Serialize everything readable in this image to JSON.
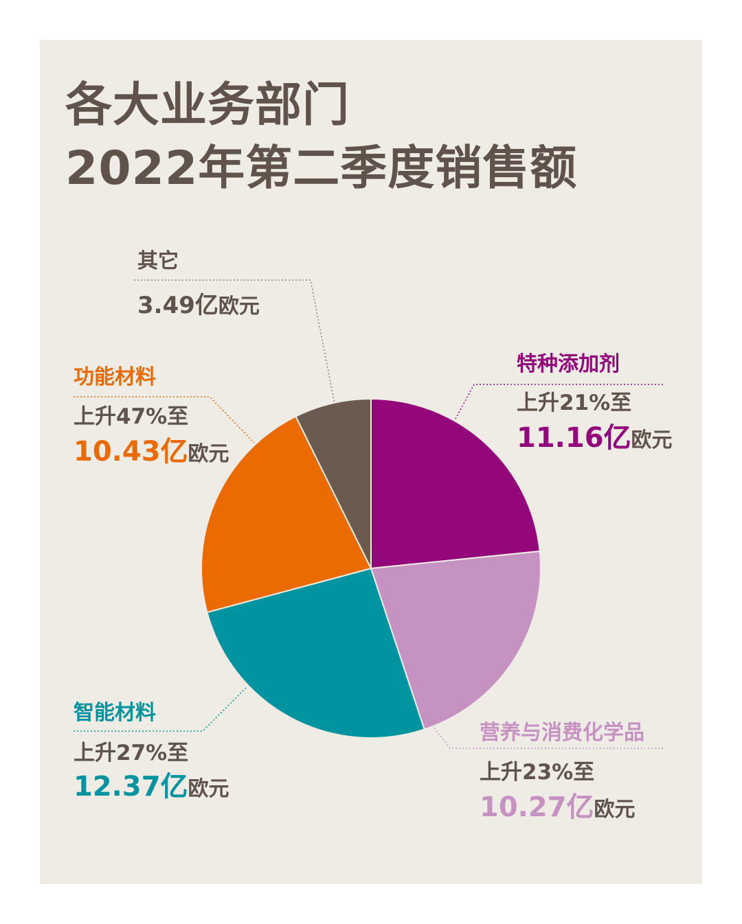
{
  "title": {
    "line1": "各大业务部门",
    "line2": "2022年第二季度销售额"
  },
  "chart_data": {
    "type": "pie",
    "title": "各大业务部门 2022年第二季度销售额",
    "unit": "亿欧元",
    "slices": [
      {
        "name": "特种添加剂",
        "value": 11.16,
        "change": "上升21%至",
        "value_label": "11.16亿",
        "color": "#93077a"
      },
      {
        "name": "营养与消费化学品",
        "value": 10.27,
        "change": "上升23%至",
        "value_label": "10.27亿",
        "color": "#c592c2"
      },
      {
        "name": "智能材料",
        "value": 12.37,
        "change": "上升27%至",
        "value_label": "12.37亿",
        "color": "#0094a0"
      },
      {
        "name": "功能材料",
        "value": 10.43,
        "change": "上升47%至",
        "value_label": "10.43亿",
        "color": "#eb6b00"
      },
      {
        "name": "其它",
        "value": 3.49,
        "change": "",
        "value_label": "3.49亿",
        "color": "#6b5a50"
      }
    ],
    "unit_label": "欧元",
    "start": "top",
    "direction": "clockwise"
  }
}
